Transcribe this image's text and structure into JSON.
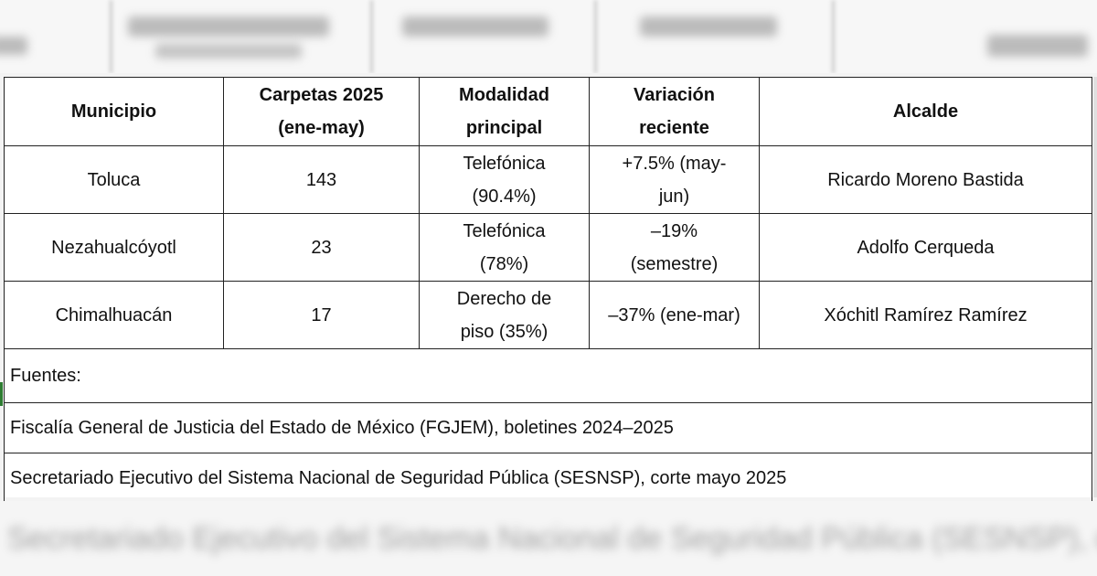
{
  "table": {
    "headers": [
      {
        "line1": "Municipio",
        "line2": ""
      },
      {
        "line1": "Carpetas 2025",
        "line2": "(ene-may)"
      },
      {
        "line1": "Modalidad",
        "line2": "principal"
      },
      {
        "line1": "Variación",
        "line2": "reciente"
      },
      {
        "line1": "Alcalde",
        "line2": ""
      }
    ],
    "rows": [
      {
        "municipio": "Toluca",
        "carpetas": "143",
        "modalidad_1": "Telefónica",
        "modalidad_2": "(90.4%)",
        "variacion_1": "+7.5% (may-",
        "variacion_2": "jun)",
        "alcalde": "Ricardo Moreno Bastida"
      },
      {
        "municipio": "Nezahualcóyotl",
        "carpetas": "23",
        "modalidad_1": "Telefónica",
        "modalidad_2": "(78%)",
        "variacion_1": "–19%",
        "variacion_2": "(semestre)",
        "alcalde": "Adolfo Cerqueda"
      },
      {
        "municipio": "Chimalhuacán",
        "carpetas": "17",
        "modalidad_1": "Derecho de",
        "modalidad_2": "piso (35%)",
        "variacion_1": "–37% (ene-mar)",
        "variacion_2": "",
        "alcalde": "Xóchitl Ramírez Ramírez"
      }
    ],
    "sources": [
      "Fuentes:",
      "Fiscalía General de Justicia del Estado de México (FGJEM), boletines 2024–2025",
      "Secretariado Ejecutivo del Sistema Nacional de Seguridad Pública (SESNSP), corte mayo 2025"
    ]
  },
  "colors": {
    "border": "#222222",
    "background": "#f3f3f3",
    "accent_mark": "#2e7d32"
  }
}
